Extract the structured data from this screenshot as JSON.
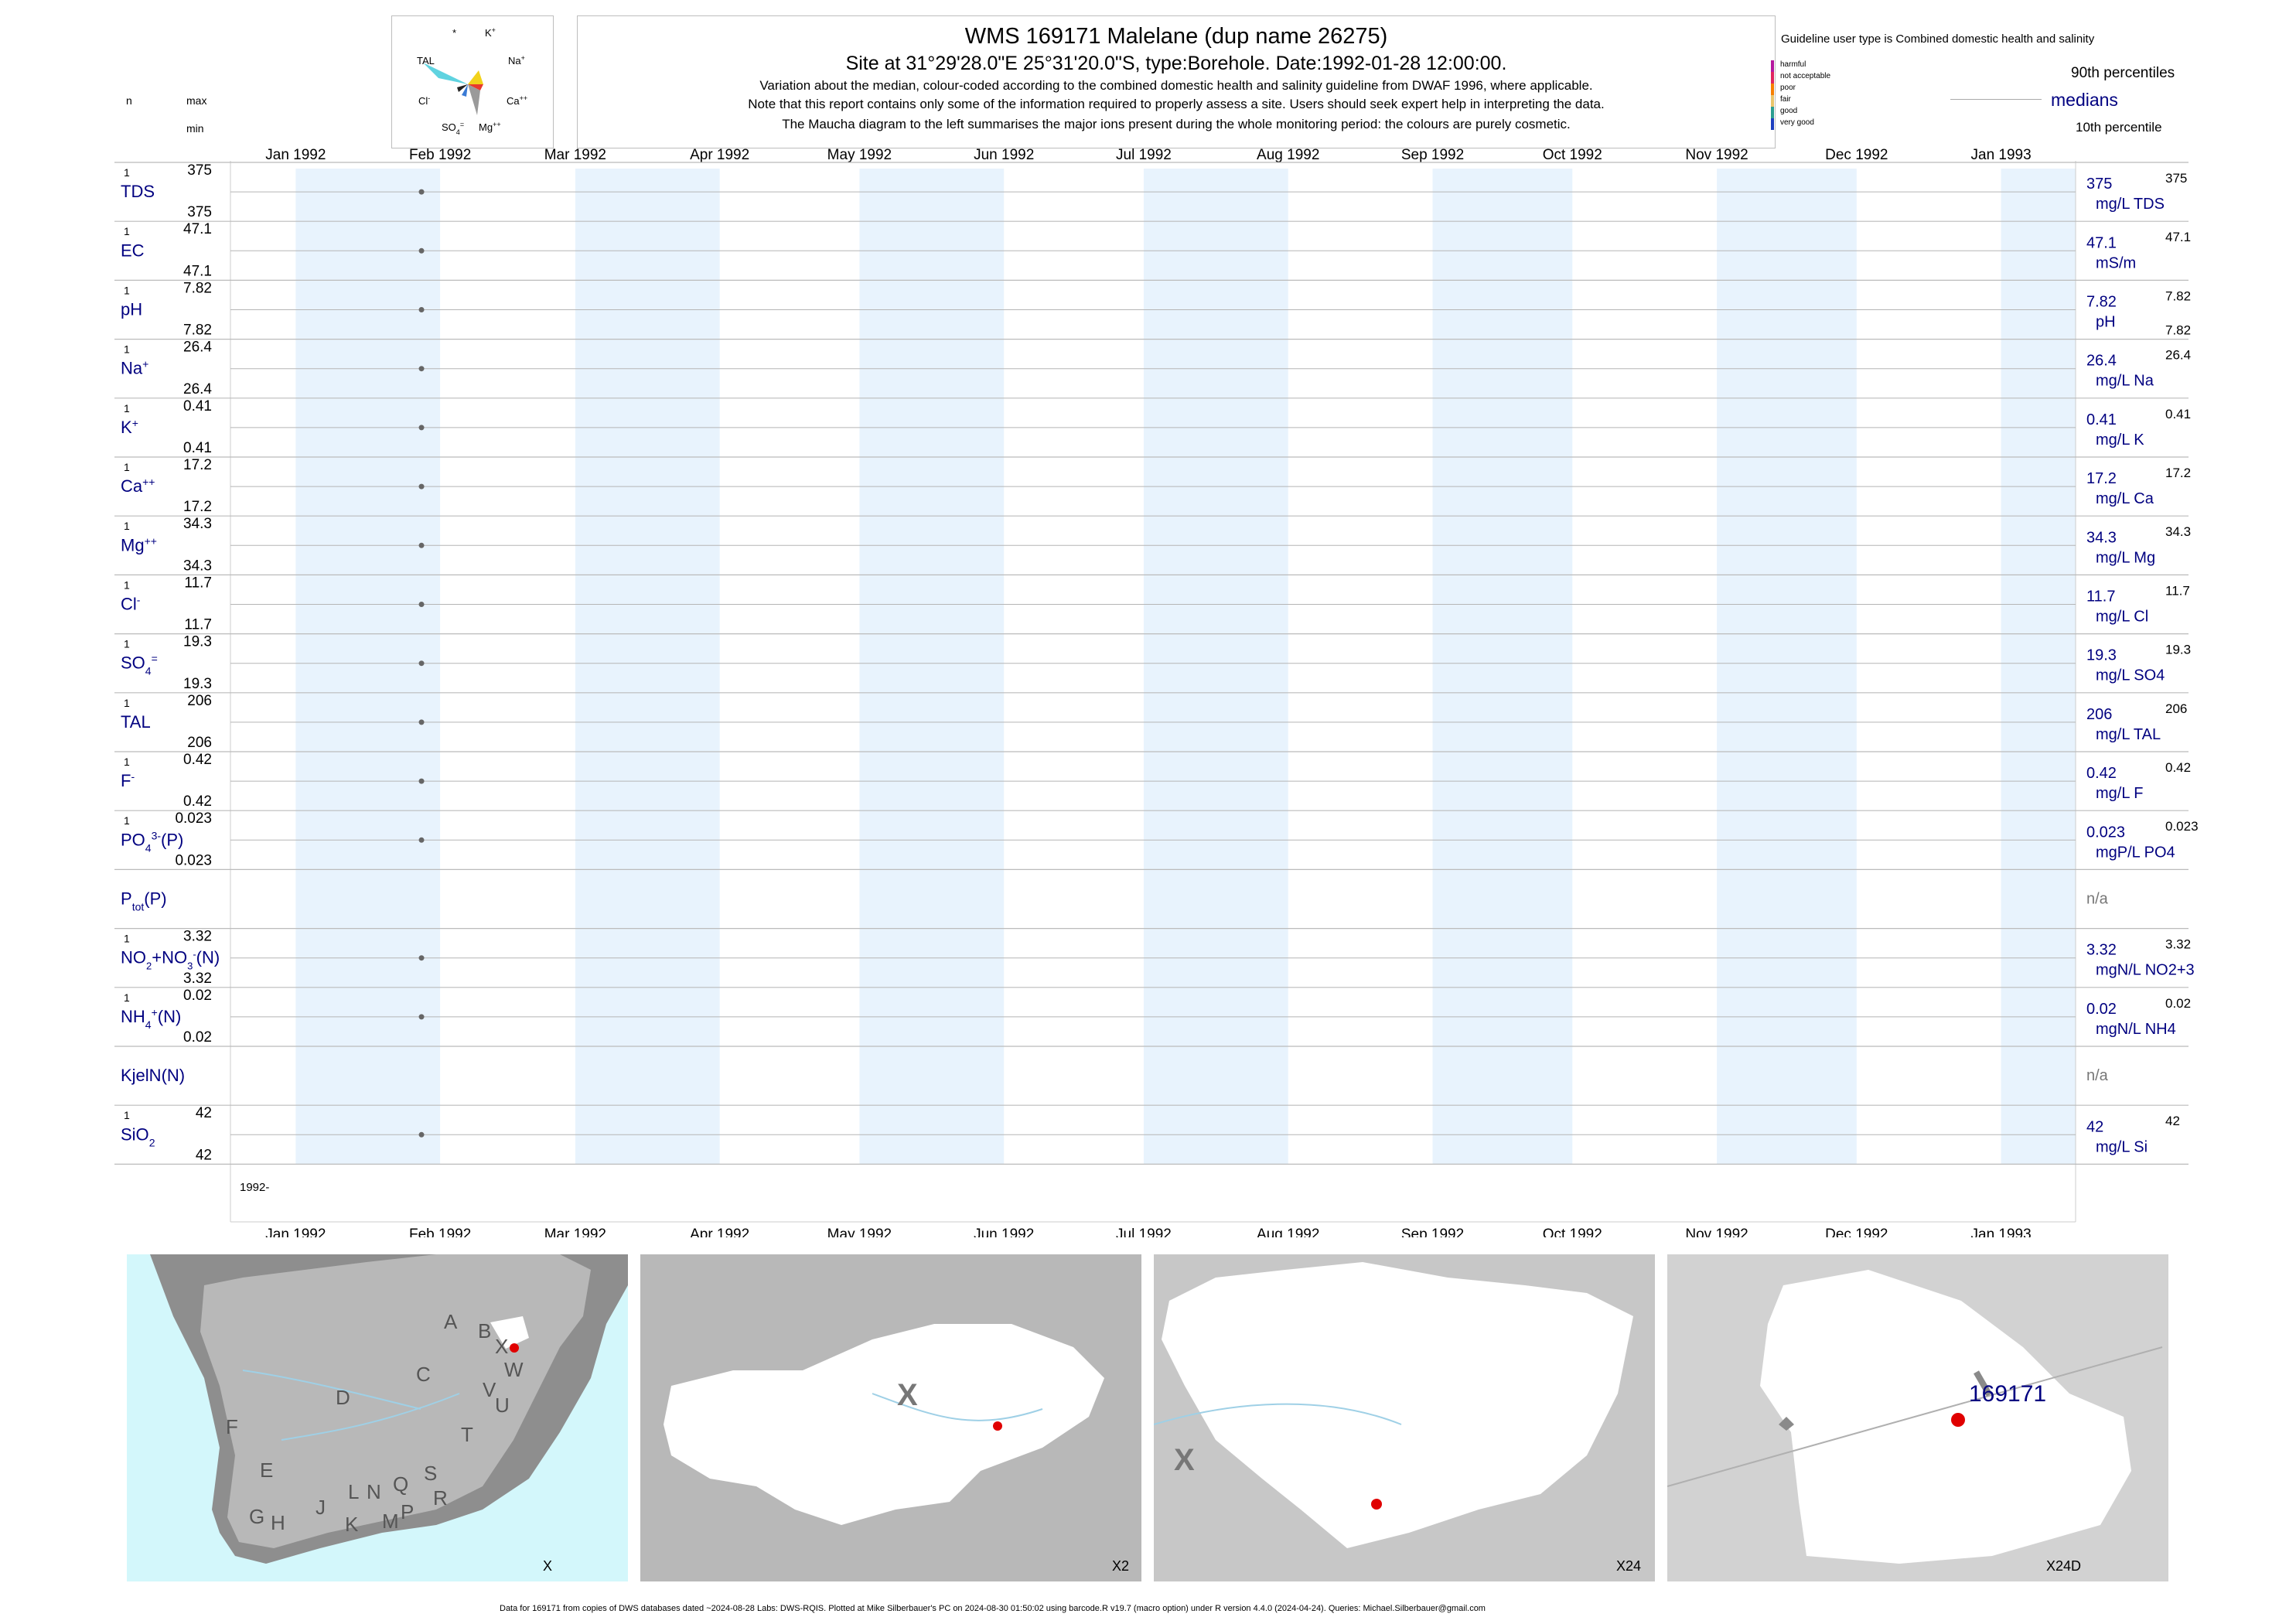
{
  "header": {
    "title": "WMS 169171  Malelane (dup name 26275)",
    "subtitle": "Site at 31°29'28.0\"E 25°31'20.0\"S, type:Borehole. Date:1992-01-28 12:00:00.",
    "note1": "Variation about the median,  colour-coded according to the combined domestic health and salinity guideline from DWAF 1996, where applicable.",
    "note2": "Note that this report contains only some of the information required to properly assess a site. Users should seek expert help in interpreting the data.",
    "note3": "The Maucha diagram to the left summarises the major ions present during the whole monitoring period: the colours are purely cosmetic."
  },
  "column_headers": {
    "n": "n",
    "max": "max",
    "min": "min"
  },
  "maucha": {
    "labels": {
      "star": "*",
      "k": "K+",
      "tal": "TAL",
      "na": "Na+",
      "cl": "Cl-",
      "ca": "Ca++",
      "so4": "SO4=",
      "mg": "Mg++"
    }
  },
  "legend": {
    "guideline_title": "Guideline user type is Combined domestic health and salinity",
    "classes": [
      {
        "label": "harmful",
        "color": "#b5179e"
      },
      {
        "label": "not acceptable",
        "color": "#e0245e"
      },
      {
        "label": "poor",
        "color": "#f77f00"
      },
      {
        "label": "fair",
        "color": "#e9c46a"
      },
      {
        "label": "good",
        "color": "#2a9d8f"
      },
      {
        "label": "very good",
        "color": "#1d3fbf"
      }
    ],
    "p90": "90th percentiles",
    "medians": "medians",
    "p10": "10th percentile"
  },
  "chart_data": {
    "type": "scatter",
    "x_axis": {
      "ticks": [
        "Jan 1992",
        "Feb 1992",
        "Mar 1992",
        "Apr 1992",
        "May 1992",
        "Jun 1992",
        "Jul 1992",
        "Aug 1992",
        "Sep 1992",
        "Oct 1992",
        "Nov 1992",
        "Dec 1992",
        "Jan 1993"
      ],
      "range": [
        "1991-12-18",
        "1993-01-17"
      ],
      "year_label": "1992-"
    },
    "sample_date": "1992-01-28",
    "shaded_months": [
      "Jan",
      "Mar",
      "May",
      "Jul",
      "Sep",
      "Nov",
      "Jan"
    ],
    "series": [
      {
        "name": "TDS",
        "sub": "",
        "sup": "",
        "tail": "",
        "n": "1",
        "max": "375",
        "min": "375",
        "values": [
          375
        ],
        "median": "375",
        "p90": "375",
        "p10": "",
        "unit": "mg/L TDS"
      },
      {
        "name": "EC",
        "sub": "",
        "sup": "",
        "tail": "",
        "n": "1",
        "max": "47.1",
        "min": "47.1",
        "values": [
          47.1
        ],
        "median": "47.1",
        "p90": "47.1",
        "p10": "",
        "unit": "mS/m"
      },
      {
        "name": "pH",
        "sub": "",
        "sup": "",
        "tail": "",
        "n": "1",
        "max": "7.82",
        "min": "7.82",
        "values": [
          7.82
        ],
        "median": "7.82",
        "p90": "7.82",
        "p10": "7.82",
        "unit": "pH"
      },
      {
        "name": "Na",
        "sub": "",
        "sup": "+",
        "tail": "",
        "n": "1",
        "max": "26.4",
        "min": "26.4",
        "values": [
          26.4
        ],
        "median": "26.4",
        "p90": "26.4",
        "p10": "",
        "unit": "mg/L Na"
      },
      {
        "name": "K",
        "sub": "",
        "sup": "+",
        "tail": "",
        "n": "1",
        "max": "0.41",
        "min": "0.41",
        "values": [
          0.41
        ],
        "median": "0.41",
        "p90": "0.41",
        "p10": "",
        "unit": "mg/L K"
      },
      {
        "name": "Ca",
        "sub": "",
        "sup": "++",
        "tail": "",
        "n": "1",
        "max": "17.2",
        "min": "17.2",
        "values": [
          17.2
        ],
        "median": "17.2",
        "p90": "17.2",
        "p10": "",
        "unit": "mg/L Ca"
      },
      {
        "name": "Mg",
        "sub": "",
        "sup": "++",
        "tail": "",
        "n": "1",
        "max": "34.3",
        "min": "34.3",
        "values": [
          34.3
        ],
        "median": "34.3",
        "p90": "34.3",
        "p10": "",
        "unit": "mg/L Mg"
      },
      {
        "name": "Cl",
        "sub": "",
        "sup": "-",
        "tail": "",
        "n": "1",
        "max": "11.7",
        "min": "11.7",
        "values": [
          11.7
        ],
        "median": "11.7",
        "p90": "11.7",
        "p10": "",
        "unit": "mg/L Cl"
      },
      {
        "name": "SO",
        "sub": "4",
        "sup": "=",
        "tail": "",
        "n": "1",
        "max": "19.3",
        "min": "19.3",
        "values": [
          19.3
        ],
        "median": "19.3",
        "p90": "19.3",
        "p10": "",
        "unit": "mg/L SO4"
      },
      {
        "name": "TAL",
        "sub": "",
        "sup": "",
        "tail": "",
        "n": "1",
        "max": "206",
        "min": "206",
        "values": [
          206
        ],
        "median": "206",
        "p90": "206",
        "p10": "",
        "unit": "mg/L TAL"
      },
      {
        "name": "F",
        "sub": "",
        "sup": "-",
        "tail": "",
        "n": "1",
        "max": "0.42",
        "min": "0.42",
        "values": [
          0.42
        ],
        "median": "0.42",
        "p90": "0.42",
        "p10": "",
        "unit": "mg/L F"
      },
      {
        "name": "PO",
        "sub": "4",
        "sup": "3-",
        "tail": "(P)",
        "n": "1",
        "max": "0.023",
        "min": "0.023",
        "values": [
          0.023
        ],
        "median": "0.023",
        "p90": "0.023",
        "p10": "",
        "unit": "mgP/L PO4"
      },
      {
        "name": "P",
        "sub": "tot",
        "sup": "",
        "tail": "(P)",
        "n": "",
        "max": "",
        "min": "",
        "values": [],
        "median": "n/a",
        "p90": "",
        "p10": "",
        "unit": ""
      },
      {
        "name": "NO2+NO3(N)",
        "sub": "",
        "sup": "",
        "tail": "",
        "n": "1",
        "max": "3.32",
        "min": "3.32",
        "values": [
          3.32
        ],
        "median": "3.32",
        "p90": "3.32",
        "p10": "",
        "unit": "mgN/L NO2+3"
      },
      {
        "name": "NH",
        "sub": "4",
        "sup": "+",
        "tail": "(N)",
        "n": "1",
        "max": "0.02",
        "min": "0.02",
        "values": [
          0.02
        ],
        "median": "0.02",
        "p90": "0.02",
        "p10": "",
        "unit": "mgN/L NH4"
      },
      {
        "name": "KjelN(N)",
        "sub": "",
        "sup": "",
        "tail": "",
        "n": "",
        "max": "",
        "min": "",
        "values": [],
        "median": "n/a",
        "p90": "",
        "p10": "",
        "unit": ""
      },
      {
        "name": "SiO",
        "sub": "2",
        "sup": "",
        "tail": "",
        "n": "1",
        "max": "42",
        "min": "42",
        "values": [
          42
        ],
        "median": "42",
        "p90": "42",
        "p10": "",
        "unit": "mg/L Si"
      }
    ]
  },
  "maps": [
    {
      "label": "X",
      "regions": [
        "A",
        "B",
        "X",
        "C",
        "W",
        "D",
        "V",
        "U",
        "F",
        "T",
        "E",
        "S",
        "Q",
        "L",
        "N",
        "R",
        "J",
        "G",
        "H",
        "K",
        "M",
        "P"
      ]
    },
    {
      "label": "X2",
      "marker": "X"
    },
    {
      "label": "X24",
      "marker": "X"
    },
    {
      "label": "X24D",
      "site": "169171"
    }
  ],
  "footer": "Data for 169171 from copies of DWS databases dated ~2024-08-28 Labs: DWS-RQIS. Plotted at Mike Silberbauer's PC on 2024-08-30 01:50:02 using barcode.R v19.7 (macro option) under R version 4.4.0 (2024-04-24). Queries: Michael.Silberbauer@gmail.com"
}
